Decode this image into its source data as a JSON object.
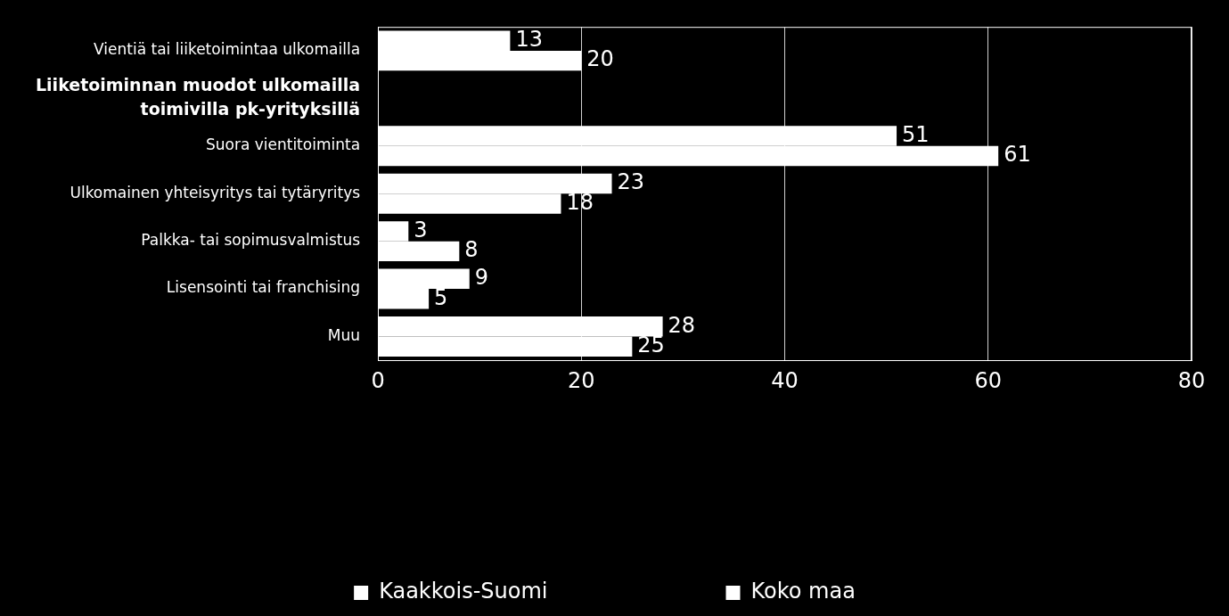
{
  "chart_data": {
    "type": "bar",
    "orientation": "horizontal",
    "categories": [
      "Vientiä tai liiketoimintaa ulkomailla",
      "Liiketoiminnan muodot ulkomailla toimivilla pk-yrityksillä",
      "Suora vientitoiminta",
      "Ulkomainen yhteisyritys tai tytäryritys",
      "Palkka- tai sopimusvalmistus",
      "Lisensointi tai franchising",
      "Muu"
    ],
    "series": [
      {
        "name": "Kaakkois-Suomi",
        "color": "#ffffff",
        "values": [
          13,
          null,
          51,
          23,
          3,
          9,
          28
        ]
      },
      {
        "name": "Koko maa",
        "color": "#ffffff",
        "values": [
          20,
          null,
          61,
          18,
          8,
          5,
          25
        ]
      }
    ],
    "xlim": [
      0,
      80
    ],
    "xticks": [
      0,
      20,
      40,
      60,
      80
    ],
    "grid": true,
    "legend": "bottom",
    "data_labels": true
  }
}
